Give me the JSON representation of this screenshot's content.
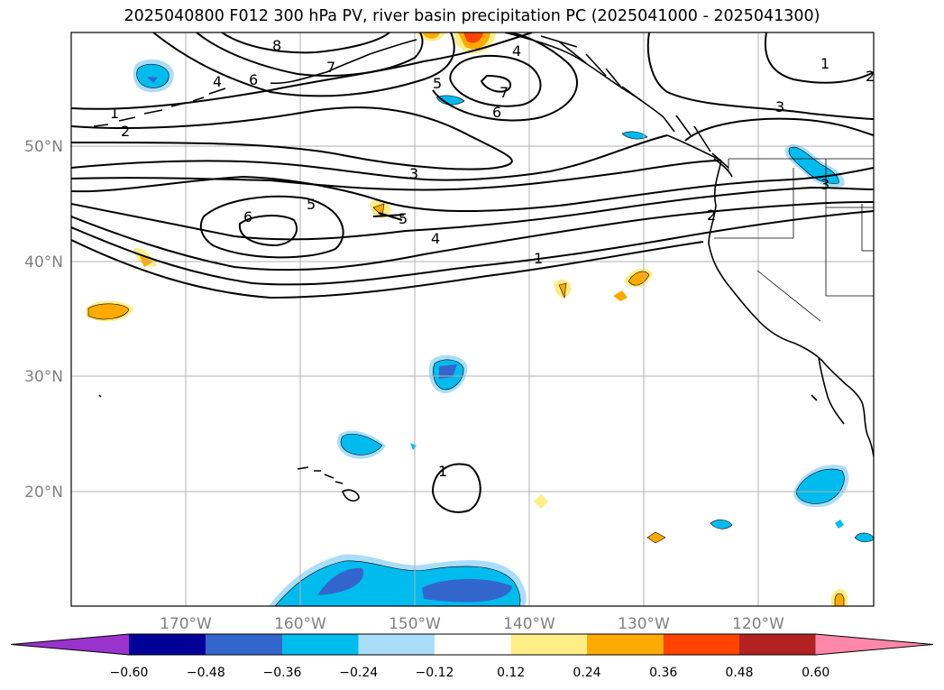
{
  "title": "2025040800 F012 300 hPa PV, river basin precipitation PC (2025041000 - 2025041300)",
  "lat_labels": [
    "50°N",
    "40°N",
    "30°N",
    "20°N"
  ],
  "lon_labels": [
    "170°W",
    "160°W",
    "150°W",
    "140°W",
    "130°W",
    "120°W"
  ],
  "contour_labels": [
    "1",
    "2",
    "3",
    "4",
    "5",
    "6",
    "7",
    "8"
  ],
  "colorbar": {
    "colors": [
      "#9933cc",
      "#000099",
      "#3366cc",
      "#00bbee",
      "#aaddf8",
      "#ffffff",
      "#ffee88",
      "#ffaa00",
      "#ff4400",
      "#b22222",
      "#ff88aa"
    ],
    "ticks": [
      "−0.60",
      "−0.48",
      "−0.36",
      "−0.24",
      "−0.12",
      "0.12",
      "0.24",
      "0.36",
      "0.48",
      "0.60"
    ]
  }
}
